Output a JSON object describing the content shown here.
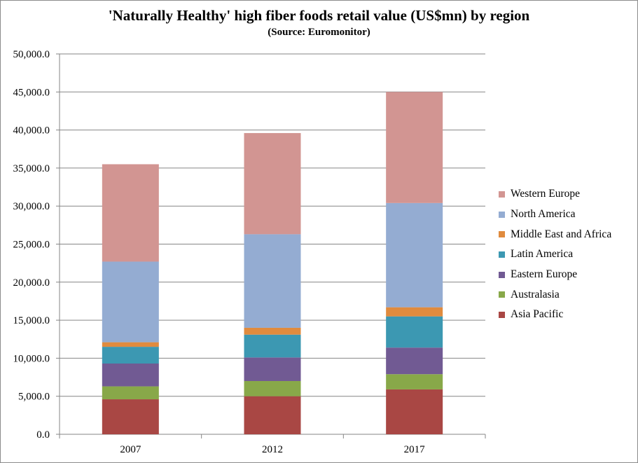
{
  "chart_data": {
    "type": "bar",
    "stacked": true,
    "title": "'Naturally Healthy' high fiber foods retail value (US$mn) by region",
    "subtitle": "(Source: Euromonitor)",
    "xlabel": "",
    "ylabel": "",
    "ylim": [
      0,
      50000
    ],
    "yticks": [
      "0.0",
      "5,000.0",
      "10,000.0",
      "15,000.0",
      "20,000.0",
      "25,000.0",
      "30,000.0",
      "35,000.0",
      "40,000.0",
      "45,000.0",
      "50,000.0"
    ],
    "grid": true,
    "legend_position": "right",
    "categories": [
      "2007",
      "2012",
      "2017"
    ],
    "series": [
      {
        "name": "Asia Pacific",
        "color": "#a94744",
        "values": [
          4600,
          5000,
          5900
        ]
      },
      {
        "name": "Australasia",
        "color": "#88a849",
        "values": [
          1700,
          2000,
          2000
        ]
      },
      {
        "name": "Eastern Europe",
        "color": "#715a93",
        "values": [
          3000,
          3100,
          3500
        ]
      },
      {
        "name": "Latin America",
        "color": "#3c98b2",
        "values": [
          2200,
          3000,
          4100
        ]
      },
      {
        "name": "Middle East and Africa",
        "color": "#e08b3e",
        "values": [
          600,
          900,
          1200
        ]
      },
      {
        "name": "North America",
        "color": "#94acd2",
        "values": [
          10600,
          12300,
          13700
        ]
      },
      {
        "name": "Western Europe",
        "color": "#d29592",
        "values": [
          12800,
          13300,
          14600
        ]
      }
    ]
  }
}
